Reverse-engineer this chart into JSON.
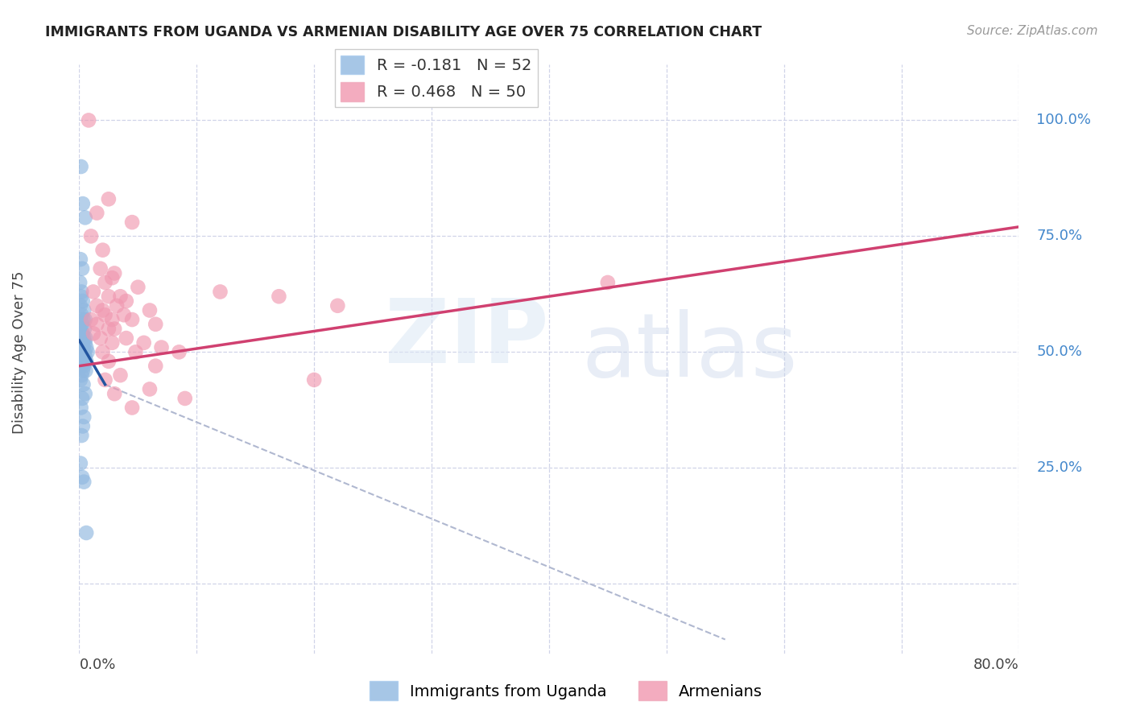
{
  "title": "IMMIGRANTS FROM UGANDA VS ARMENIAN DISABILITY AGE OVER 75 CORRELATION CHART",
  "source": "Source: ZipAtlas.com",
  "ylabel": "Disability Age Over 75",
  "uganda_color": "#90b8e0",
  "armenian_color": "#f098b0",
  "uganda_line_color": "#2255a0",
  "armenian_line_color": "#d04070",
  "dashed_line_color": "#b0b8d0",
  "grid_color": "#d0d4e8",
  "xmin": 0.0,
  "xmax": 80.0,
  "ymin": -15.0,
  "ymax": 112.0,
  "right_labels": {
    "100": "100.0%",
    "75": "75.0%",
    "50": "50.0%",
    "25": "25.0%"
  },
  "ytick_positions": [
    0,
    25,
    50,
    75,
    100
  ],
  "xtick_positions": [
    0,
    10,
    20,
    30,
    40,
    50,
    60,
    70,
    80
  ],
  "uganda_points": [
    [
      0.15,
      90
    ],
    [
      0.3,
      82
    ],
    [
      0.5,
      79
    ],
    [
      0.1,
      70
    ],
    [
      0.25,
      68
    ],
    [
      0.05,
      65
    ],
    [
      0.2,
      63
    ],
    [
      0.15,
      62
    ],
    [
      0.3,
      61
    ],
    [
      0.1,
      60
    ],
    [
      0.4,
      59
    ],
    [
      0.2,
      58
    ],
    [
      0.5,
      57
    ],
    [
      0.35,
      57
    ],
    [
      0.25,
      56
    ],
    [
      0.45,
      55
    ],
    [
      0.1,
      55
    ],
    [
      0.3,
      54
    ],
    [
      0.2,
      54
    ],
    [
      0.4,
      53
    ],
    [
      0.55,
      53
    ],
    [
      0.15,
      53
    ],
    [
      0.3,
      52
    ],
    [
      0.5,
      52
    ],
    [
      0.1,
      51
    ],
    [
      0.35,
      51
    ],
    [
      0.6,
      51
    ],
    [
      0.2,
      50
    ],
    [
      0.45,
      50
    ],
    [
      0.7,
      50
    ],
    [
      0.25,
      49
    ],
    [
      0.5,
      49
    ],
    [
      0.1,
      48
    ],
    [
      0.35,
      48
    ],
    [
      0.6,
      48
    ],
    [
      0.15,
      47
    ],
    [
      0.4,
      47
    ],
    [
      0.3,
      46
    ],
    [
      0.55,
      46
    ],
    [
      0.2,
      45
    ],
    [
      0.1,
      44
    ],
    [
      0.35,
      43
    ],
    [
      0.5,
      41
    ],
    [
      0.25,
      40
    ],
    [
      0.15,
      38
    ],
    [
      0.4,
      36
    ],
    [
      0.3,
      34
    ],
    [
      0.2,
      32
    ],
    [
      0.1,
      26
    ],
    [
      0.25,
      23
    ],
    [
      0.4,
      22
    ],
    [
      0.6,
      11
    ]
  ],
  "armenian_points": [
    [
      0.8,
      100
    ],
    [
      2.5,
      83
    ],
    [
      1.5,
      80
    ],
    [
      4.5,
      78
    ],
    [
      1.0,
      75
    ],
    [
      2.0,
      72
    ],
    [
      1.8,
      68
    ],
    [
      3.0,
      67
    ],
    [
      2.8,
      66
    ],
    [
      2.2,
      65
    ],
    [
      5.0,
      64
    ],
    [
      1.2,
      63
    ],
    [
      3.5,
      62
    ],
    [
      2.5,
      62
    ],
    [
      4.0,
      61
    ],
    [
      1.5,
      60
    ],
    [
      3.2,
      60
    ],
    [
      2.0,
      59
    ],
    [
      6.0,
      59
    ],
    [
      3.8,
      58
    ],
    [
      2.2,
      58
    ],
    [
      1.0,
      57
    ],
    [
      2.8,
      57
    ],
    [
      4.5,
      57
    ],
    [
      1.5,
      56
    ],
    [
      6.5,
      56
    ],
    [
      3.0,
      55
    ],
    [
      2.5,
      55
    ],
    [
      1.2,
      54
    ],
    [
      4.0,
      53
    ],
    [
      1.8,
      53
    ],
    [
      5.5,
      52
    ],
    [
      2.8,
      52
    ],
    [
      7.0,
      51
    ],
    [
      2.0,
      50
    ],
    [
      4.8,
      50
    ],
    [
      8.5,
      50
    ],
    [
      2.5,
      48
    ],
    [
      6.5,
      47
    ],
    [
      3.5,
      45
    ],
    [
      2.2,
      44
    ],
    [
      6.0,
      42
    ],
    [
      3.0,
      41
    ],
    [
      9.0,
      40
    ],
    [
      4.5,
      38
    ],
    [
      12.0,
      63
    ],
    [
      17.0,
      62
    ],
    [
      22.0,
      60
    ],
    [
      45.0,
      65
    ],
    [
      20.0,
      44
    ]
  ],
  "uganda_line_x": [
    0.0,
    2.2
  ],
  "uganda_line_y": [
    52.5,
    43.0
  ],
  "dashed_line_x": [
    2.2,
    55.0
  ],
  "dashed_line_y": [
    43.0,
    -12.0
  ],
  "armenian_line_x": [
    0.0,
    80.0
  ],
  "armenian_line_y": [
    47.0,
    77.0
  ],
  "background_color": "#ffffff"
}
